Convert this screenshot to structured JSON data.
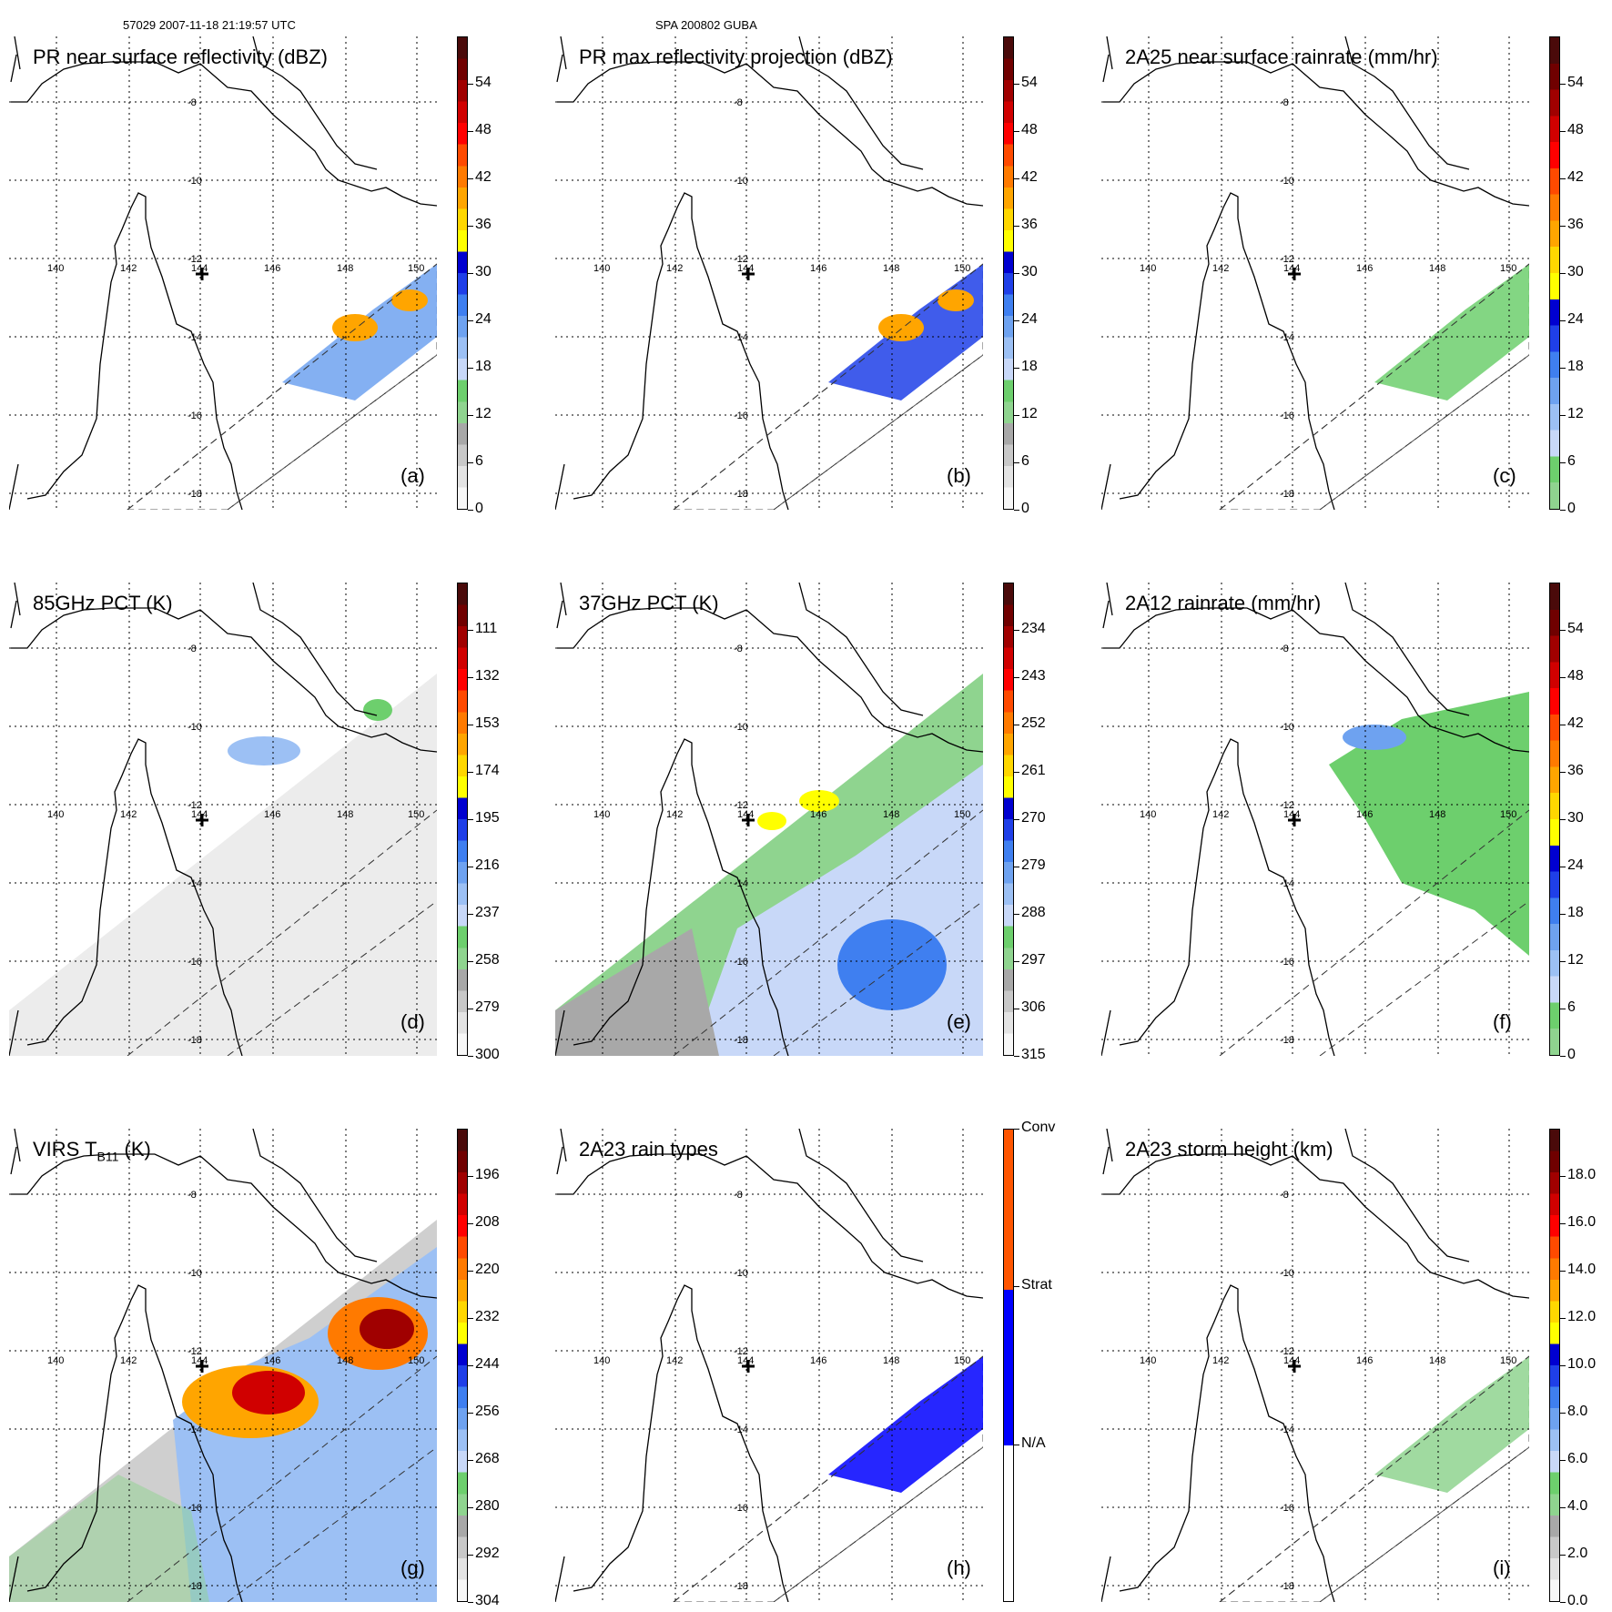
{
  "header": {
    "orbit_time": "57029 2007-11-18 21:19:57 UTC",
    "storm_id": "SPA 200802 GUBA"
  },
  "map_grid": {
    "lon_labels": [
      "140",
      "142",
      "144",
      "146",
      "148",
      "150"
    ],
    "lat_labels": [
      "-8",
      "-10",
      "-12",
      "-14",
      "-16",
      "-18"
    ]
  },
  "panels": [
    {
      "id": "a",
      "title": "PR near surface reflectivity (dBZ)",
      "label": "(a)",
      "ticks": [
        "0",
        "6",
        "12",
        "18",
        "24",
        "30",
        "36",
        "42",
        "48",
        "54"
      ],
      "colormap": "std"
    },
    {
      "id": "b",
      "title": "PR max reflectivity projection (dBZ)",
      "label": "(b)",
      "ticks": [
        "0",
        "6",
        "12",
        "18",
        "24",
        "30",
        "36",
        "42",
        "48",
        "54"
      ],
      "colormap": "std"
    },
    {
      "id": "c",
      "title": "2A25 near surface rainrate (mm/hr)",
      "label": "(c)",
      "ticks": [
        "0",
        "6",
        "12",
        "18",
        "24",
        "30",
        "36",
        "42",
        "48",
        "54"
      ],
      "colormap": "rain"
    },
    {
      "id": "d",
      "title": "85GHz PCT (K)",
      "label": "(d)",
      "ticks": [
        "300",
        "279",
        "258",
        "237",
        "216",
        "195",
        "174",
        "153",
        "132",
        "111"
      ],
      "colormap": "std"
    },
    {
      "id": "e",
      "title": "37GHz PCT (K)",
      "label": "(e)",
      "ticks": [
        "315",
        "306",
        "297",
        "288",
        "279",
        "270",
        "261",
        "252",
        "243",
        "234"
      ],
      "colormap": "std"
    },
    {
      "id": "f",
      "title": "2A12 rainrate (mm/hr)",
      "label": "(f)",
      "ticks": [
        "0",
        "6",
        "12",
        "18",
        "24",
        "30",
        "36",
        "42",
        "48",
        "54"
      ],
      "colormap": "rain"
    },
    {
      "id": "g",
      "title": "VIRS T",
      "title_sub": "B11",
      "title_end": " (K)",
      "label": "(g)",
      "ticks": [
        "304",
        "292",
        "280",
        "268",
        "256",
        "244",
        "232",
        "220",
        "208",
        "196"
      ],
      "colormap": "std"
    },
    {
      "id": "h",
      "title": "2A23 rain types",
      "label": "(h)",
      "ticks": [
        "N/A",
        "Strat",
        "Conv"
      ],
      "colormap": "types"
    },
    {
      "id": "i",
      "title": "2A23 storm height (km)",
      "label": "(i)",
      "ticks": [
        "0.0",
        "2.0",
        "4.0",
        "6.0",
        "8.0",
        "10.0",
        "12.0",
        "14.0",
        "16.0",
        "18.0"
      ],
      "colormap": "std"
    }
  ],
  "colors": {
    "std": [
      "#f7f7f7",
      "#e3e3e3",
      "#c8c8c8",
      "#a8a8a8",
      "#8fd48f",
      "#6dcf6d",
      "#c8d8f8",
      "#9cc0f4",
      "#6ea2f0",
      "#3f7ff0",
      "#1f3fe8",
      "#0000d0",
      "#ffff00",
      "#ffd700",
      "#ffa500",
      "#ff7a00",
      "#ff4a00",
      "#ff0000",
      "#d00000",
      "#a00000",
      "#700000",
      "#4a0a0a"
    ],
    "rain": [
      "#8fd48f",
      "#6dcf6d",
      "#c8d8f8",
      "#9cc0f4",
      "#6ea2f0",
      "#3f7ff0",
      "#1f3fe8",
      "#0000d0",
      "#ffff00",
      "#ffd700",
      "#ffa500",
      "#ff7a00",
      "#ff4a00",
      "#ff0000",
      "#d00000",
      "#a00000",
      "#700000",
      "#4a0a0a"
    ],
    "types": [
      "#ffffff",
      "#0000ff",
      "#ff5500"
    ]
  }
}
